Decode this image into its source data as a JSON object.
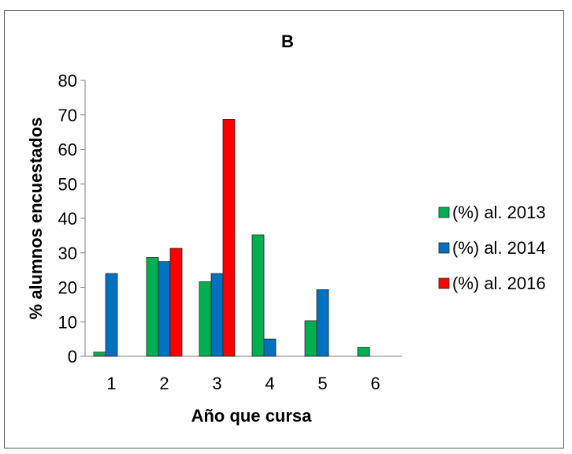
{
  "chart_data": {
    "type": "bar",
    "title": "B",
    "xlabel": "Año que cursa",
    "ylabel": "% alumnos encuestados",
    "categories": [
      "1",
      "2",
      "3",
      "4",
      "5",
      "6"
    ],
    "ylim": [
      0,
      80
    ],
    "yticks": [
      "0",
      "10",
      "20",
      "30",
      "40",
      "50",
      "60",
      "70",
      "80"
    ],
    "grid": false,
    "legend_position": "right",
    "series": [
      {
        "name": "(%) al. 2013",
        "color": "#00b050",
        "values": [
          1.2,
          28.7,
          21.6,
          35.2,
          10.3,
          2.6
        ]
      },
      {
        "name": "(%) al. 2014",
        "color": "#0070c0",
        "values": [
          24.0,
          27.5,
          24.0,
          5.0,
          19.3,
          null
        ]
      },
      {
        "name": "(%) al. 2016",
        "color": "#ff0000",
        "values": [
          null,
          31.3,
          68.7,
          null,
          null,
          null
        ]
      }
    ]
  }
}
